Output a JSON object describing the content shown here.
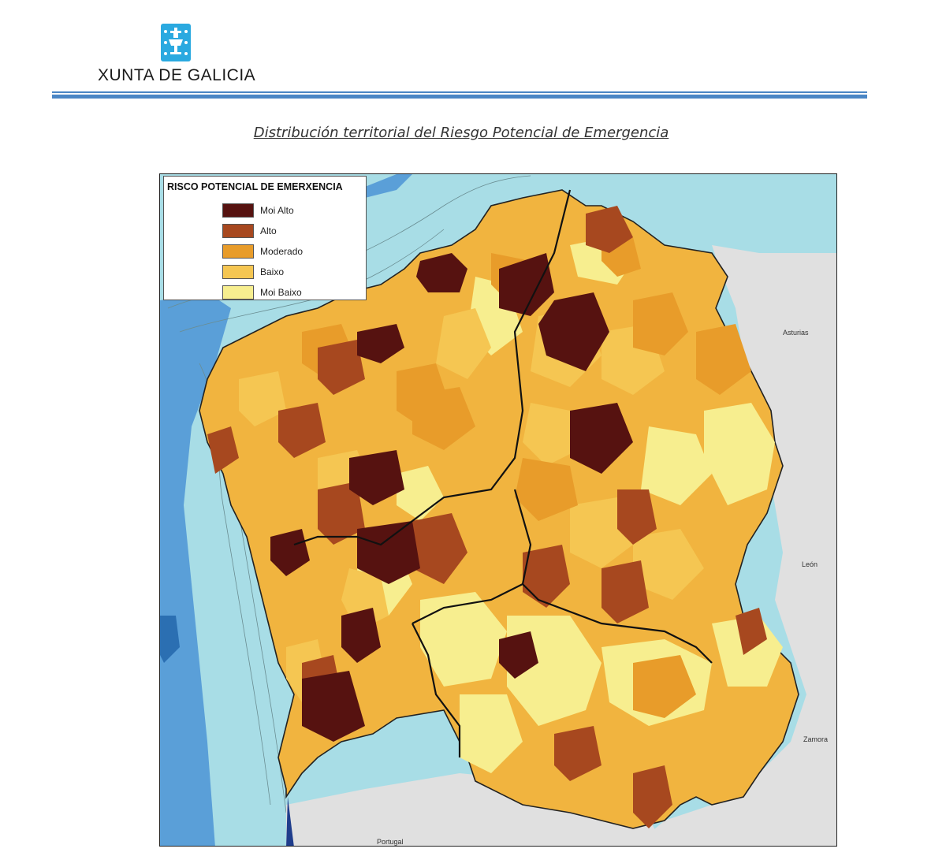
{
  "header": {
    "org_name": "XUNTA DE GALICIA",
    "logo": "galicia-coat-of-arms",
    "brand_color": "#4a86c5"
  },
  "title": "Distribución territorial del Riesgo Potencial de Emergencia",
  "map": {
    "legend": {
      "title": "RISCO POTENCIAL DE EMERXENCIA",
      "items": [
        {
          "label": "Moi Alto",
          "color": "#561210"
        },
        {
          "label": "Alto",
          "color": "#a7481f"
        },
        {
          "label": "Moderado",
          "color": "#e89c2a"
        },
        {
          "label": "Baixo",
          "color": "#f5c652"
        },
        {
          "label": "Moi Baixo",
          "color": "#f7ee8f"
        }
      ]
    },
    "neighbor_regions": [
      "Asturias",
      "León",
      "Zamora",
      "Portugal"
    ],
    "colors": {
      "sea": "#a8dde6",
      "deep_sea": "#5a9fd8",
      "neighbor_land": "#e0e0e0"
    }
  }
}
